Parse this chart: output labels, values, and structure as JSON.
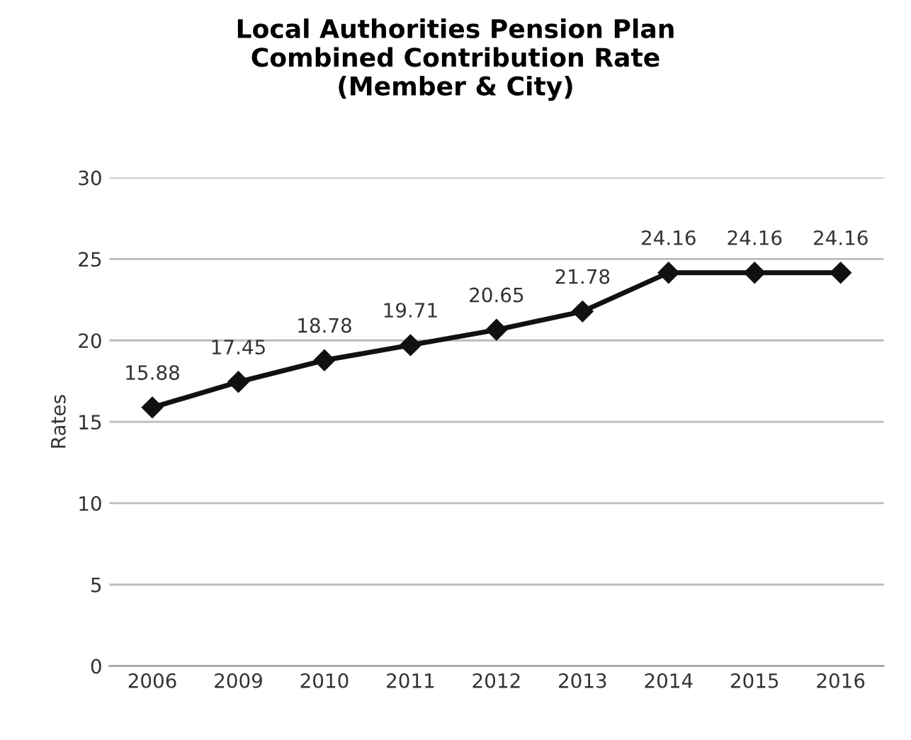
{
  "chart_data": {
    "type": "line",
    "title": "Local Authorities Pension Plan\nCombined Contribution Rate\n(Member & City)",
    "ylabel": "Rates",
    "categories": [
      "2006",
      "2009",
      "2010",
      "2011",
      "2012",
      "2013",
      "2014",
      "2015",
      "2016"
    ],
    "series": [
      {
        "color": "#111111",
        "values": [
          15.88,
          17.45,
          18.78,
          19.71,
          20.65,
          21.78,
          24.16,
          24.16,
          24.16
        ]
      }
    ],
    "ylim": [
      0,
      30
    ],
    "yticks": [
      0,
      5,
      10,
      15,
      20,
      25,
      30
    ],
    "grid": "y",
    "marker": "diamond",
    "line_style": "solid",
    "data_labels": true,
    "legend": false
  }
}
